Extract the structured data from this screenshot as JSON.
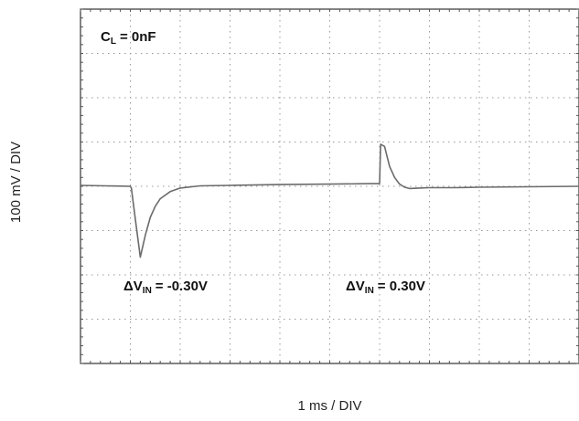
{
  "chart_data": {
    "type": "line",
    "title": "",
    "xlabel": "1 ms / DIV",
    "ylabel": "100 mV / DIV",
    "x_unit": "ms",
    "y_unit": "mV",
    "xlim": [
      0,
      10
    ],
    "ylim": [
      -400,
      400
    ],
    "grid": true,
    "divisions": {
      "x": 10,
      "y": 8
    },
    "trace_color": "#6b6b6b",
    "series": [
      {
        "values_x": [
          0,
          0.5,
          1.0,
          1.02,
          1.1,
          1.2,
          1.3,
          1.4,
          1.5,
          1.6,
          1.8,
          2.0,
          2.4,
          3.0,
          4.0,
          5.0,
          5.8,
          5.95,
          6.0,
          6.02,
          6.1,
          6.2,
          6.3,
          6.4,
          6.5,
          6.6,
          6.8,
          7.0,
          7.5,
          8.0,
          9.0,
          10.0
        ],
        "values_y": [
          2,
          1,
          0,
          -4,
          -75,
          -160,
          -110,
          -70,
          -45,
          -28,
          -12,
          -4,
          1,
          2,
          4,
          5,
          6,
          6,
          6,
          95,
          90,
          45,
          20,
          5,
          -2,
          -5,
          -4,
          -3,
          -3,
          -2,
          -1,
          0
        ]
      }
    ],
    "annotations": [
      {
        "prefix": "ΔV",
        "sub": "IN",
        "value": "= -0.30V"
      },
      {
        "prefix": "ΔV",
        "sub": "IN",
        "value": "= 0.30V"
      }
    ],
    "legend": {
      "prefix": "C",
      "sub": "L",
      "value": "= 0nF"
    }
  }
}
